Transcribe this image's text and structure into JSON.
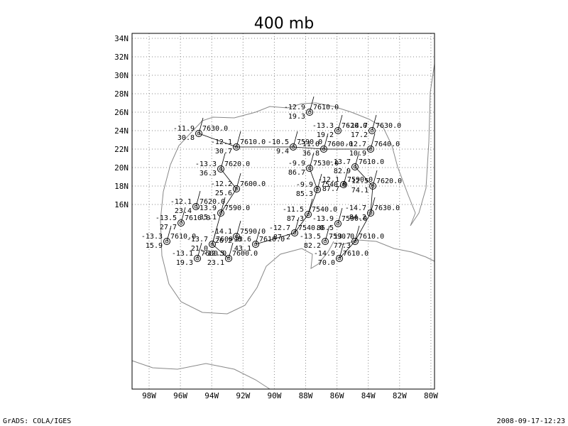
{
  "title": "400 mb",
  "footer_left": "GrADS: COLA/IGES",
  "footer_right": "2008-09-17-12:23",
  "lon_labels": [
    "98W",
    "96W",
    "94W",
    "92W",
    "90W",
    "88W",
    "86W",
    "84W",
    "82W",
    "80W"
  ],
  "lat_labels": [
    "34N",
    "32N",
    "30N",
    "28N",
    "26N",
    "24N",
    "22N",
    "20N",
    "18N",
    "16N"
  ],
  "stations": [
    {
      "temp": "-11.9",
      "dew": "30.8",
      "height": "7630.0"
    },
    {
      "temp": "-12.9",
      "dew": "19.3",
      "height": "7610.0"
    },
    {
      "temp": "-13.3",
      "dew": "19.2",
      "height": "7620.0"
    },
    {
      "temp": "-14.7",
      "dew": "17.2",
      "height": "7630.0"
    },
    {
      "temp": "-12.1",
      "dew": "30.7",
      "height": "7610.0"
    },
    {
      "temp": "-10.5",
      "dew": "9.4",
      "height": "7590.0"
    },
    {
      "temp": "-11.0",
      "dew": "36.8",
      "height": "7600.0"
    },
    {
      "temp": "-12.7",
      "dew": "10.9",
      "height": "7640.0"
    },
    {
      "temp": "-13.3",
      "dew": "36.3",
      "height": "7620.0"
    },
    {
      "temp": "-9.9",
      "dew": "86.7",
      "height": "7530.0"
    },
    {
      "temp": "-13.7",
      "dew": "82.9",
      "height": "7610.0"
    },
    {
      "temp": "-12.2",
      "dew": "25.6",
      "height": "7600.0"
    },
    {
      "temp": "-9.9",
      "dew": "85.3",
      "height": "7540.0"
    },
    {
      "temp": "-12.1",
      "dew": "87.7",
      "height": "7590.0"
    },
    {
      "temp": "-12.5",
      "dew": "74.1",
      "height": "7620.0"
    },
    {
      "temp": "-12.1",
      "dew": "23.4",
      "height": "7620.0"
    },
    {
      "temp": "-13.9",
      "dew": "35.1",
      "height": "7590.0"
    },
    {
      "temp": "-13.5",
      "dew": "27.7",
      "height": "7610.0"
    },
    {
      "temp": "-11.5",
      "dew": "87.3",
      "height": "7540.0"
    },
    {
      "temp": "-14.7",
      "dew": "84.2",
      "height": "7630.0"
    },
    {
      "temp": "-13.3",
      "dew": "15.9",
      "height": "7610.0"
    },
    {
      "temp": "-13.7",
      "dew": "21.0",
      "height": "7600.0"
    },
    {
      "temp": "-14.1",
      "dew": "26.2",
      "height": "7590.0"
    },
    {
      "temp": "-12.7",
      "dew": "87.2",
      "height": "7540.0"
    },
    {
      "temp": "-13.9",
      "dew": "86.5",
      "height": "7590.0"
    },
    {
      "temp": "-13.1",
      "dew": "19.3",
      "height": "7600.0"
    },
    {
      "temp": "-12.5",
      "dew": "23.1",
      "height": "7600.0"
    },
    {
      "temp": "-13.6",
      "dew": "43.1",
      "height": "7610.0"
    },
    {
      "temp": "-13.5",
      "dew": "82.2",
      "height": "7590.0"
    },
    {
      "temp": "-13.7",
      "dew": "77.3",
      "height": "7610.0"
    },
    {
      "temp": "-14.9",
      "dew": "70.0",
      "height": "7610.0"
    }
  ]
}
